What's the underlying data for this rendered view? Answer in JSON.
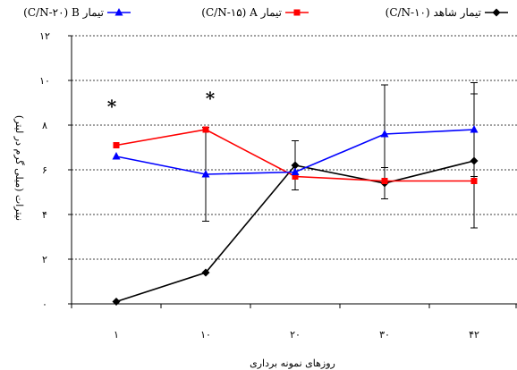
{
  "chart_data": {
    "type": "line",
    "title": "",
    "xlabel": "روزهای نمونه برداری",
    "ylabel": "نیترات (میلی گرم در لیتر)",
    "categories": [
      "۱",
      "۱۰",
      "۲۰",
      "۳۰",
      "۴۲"
    ],
    "y_ticks": [
      "۰",
      "۲",
      "۴",
      "۶",
      "۸",
      "۱۰",
      "۱۲"
    ],
    "ylim": [
      0,
      12
    ],
    "grid": "horizontal dashed",
    "legend_position": "top",
    "annotations": [
      {
        "text": "*",
        "at_category": "۱"
      },
      {
        "text": "*",
        "at_category": "۱۰"
      }
    ],
    "series": [
      {
        "name": "تیمار شاهد (C/N-۱۰)",
        "color": "#000000",
        "marker": "diamond",
        "values": [
          0.1,
          1.4,
          6.2,
          5.4,
          6.4
        ],
        "error": [
          null,
          null,
          1.1,
          0.7,
          3.0
        ]
      },
      {
        "name": "تیمار C/N-۱۵) A)",
        "color": "#ff0000",
        "marker": "square",
        "values": [
          7.1,
          7.8,
          5.7,
          5.5,
          5.5
        ],
        "error": [
          null,
          null,
          null,
          null,
          null
        ]
      },
      {
        "name": "تیمار C/N-۲۰) B)",
        "color": "#0000ff",
        "marker": "triangle",
        "values": [
          6.6,
          5.8,
          5.9,
          7.6,
          7.8
        ],
        "error": [
          null,
          2.1,
          null,
          2.2,
          2.1
        ]
      }
    ]
  }
}
